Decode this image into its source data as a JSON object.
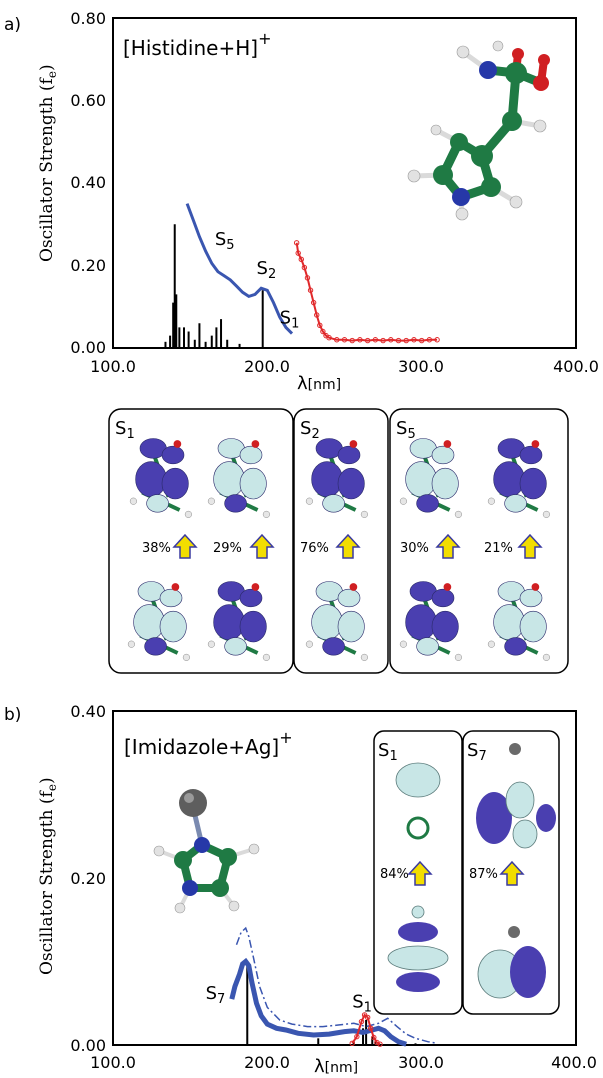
{
  "chart_data": [
    {
      "panel": "a)",
      "type": "line",
      "title": "[Histidine+H]",
      "title_superscript": "+",
      "ylabel": "Oscillator Strength",
      "ylabel_sub": "(f",
      "ylabel_sub_e": "e",
      "ylabel_close": ")",
      "xlabel_main": "λ",
      "xlabel_unit": "[nm]",
      "xlim": [
        100,
        400
      ],
      "ylim": [
        0,
        0.8
      ],
      "x_ticks": [
        "100.0",
        "200.0",
        "300.0",
        "400.0"
      ],
      "y_ticks": [
        "0.00",
        "0.20",
        "0.40",
        "0.60",
        "0.80"
      ],
      "sticks_x": [
        134,
        137,
        139,
        140,
        141,
        143,
        146,
        149,
        153,
        156,
        160,
        164,
        167,
        170,
        174,
        182,
        197
      ],
      "sticks_y": [
        0.015,
        0.03,
        0.11,
        0.3,
        0.13,
        0.05,
        0.05,
        0.04,
        0.02,
        0.06,
        0.015,
        0.03,
        0.05,
        0.07,
        0.02,
        0.01,
        0.14
      ],
      "blue_curve_x": [
        148,
        152,
        156,
        160,
        164,
        168,
        172,
        176,
        180,
        184,
        188,
        192,
        196,
        200,
        204,
        208,
        212,
        216
      ],
      "blue_curve_y": [
        0.35,
        0.31,
        0.27,
        0.235,
        0.205,
        0.185,
        0.175,
        0.165,
        0.15,
        0.135,
        0.125,
        0.13,
        0.145,
        0.14,
        0.11,
        0.075,
        0.05,
        0.035
      ],
      "red_exp_x": [
        219,
        220,
        222,
        224,
        226,
        228,
        230,
        232,
        234,
        236,
        238,
        240,
        245,
        250,
        255,
        260,
        265,
        270,
        275,
        280,
        285,
        290,
        295,
        300,
        305,
        310
      ],
      "red_exp_y": [
        0.255,
        0.23,
        0.215,
        0.195,
        0.17,
        0.14,
        0.11,
        0.08,
        0.055,
        0.04,
        0.03,
        0.025,
        0.02,
        0.02,
        0.018,
        0.02,
        0.018,
        0.02,
        0.018,
        0.02,
        0.018,
        0.018,
        0.02,
        0.018,
        0.02,
        0.02
      ],
      "state_labels": [
        {
          "text": "S",
          "sub": "5",
          "x": 166,
          "y": 0.25
        },
        {
          "text": "S",
          "sub": "2",
          "x": 193,
          "y": 0.18
        },
        {
          "text": "S",
          "sub": "1",
          "x": 208,
          "y": 0.06
        }
      ],
      "colors": {
        "sticks": "#000000",
        "theory": "#3a56b0",
        "experiment": "#e0282a"
      }
    },
    {
      "panel": "b)",
      "type": "line",
      "title": "[Imidazole+Ag]",
      "title_superscript": "+",
      "ylabel": "Oscillator Strength",
      "ylabel_sub": "(f",
      "ylabel_sub_e": "e",
      "ylabel_close": ")",
      "xlabel_main": "λ",
      "xlabel_unit": "[nm]",
      "xlim": [
        100,
        400
      ],
      "ylim": [
        0,
        0.4
      ],
      "x_ticks": [
        "100.0",
        "200.0",
        "300.0",
        "400.0"
      ],
      "y_ticks": [
        "0.00",
        "0.20",
        "0.40"
      ],
      "sticks_x": [
        187,
        233,
        256,
        262,
        264,
        268,
        270,
        296
      ],
      "sticks_y": [
        0.1,
        0.008,
        0.004,
        0.02,
        0.03,
        0.01,
        0.004,
        0.002
      ],
      "blue_solid_x": [
        177,
        179,
        182,
        184,
        186,
        188,
        190,
        193,
        196,
        200,
        206,
        212,
        220,
        230,
        240,
        250,
        256,
        262,
        268,
        272,
        276,
        280,
        285,
        290
      ],
      "blue_solid_y": [
        0.055,
        0.07,
        0.085,
        0.097,
        0.1,
        0.095,
        0.075,
        0.05,
        0.035,
        0.025,
        0.02,
        0.018,
        0.014,
        0.012,
        0.013,
        0.016,
        0.017,
        0.015,
        0.018,
        0.02,
        0.017,
        0.01,
        0.004,
        0.001
      ],
      "blue_dash_x": [
        180,
        183,
        186,
        188,
        191,
        195,
        200,
        208,
        216,
        226,
        236,
        246,
        256,
        264,
        272,
        278,
        284,
        290,
        296,
        304,
        310
      ],
      "blue_dash_y": [
        0.12,
        0.135,
        0.14,
        0.13,
        0.105,
        0.07,
        0.045,
        0.03,
        0.025,
        0.022,
        0.022,
        0.024,
        0.026,
        0.022,
        0.026,
        0.032,
        0.022,
        0.013,
        0.008,
        0.004,
        0.002
      ],
      "red_exp_x": [
        255,
        258,
        261,
        263,
        265,
        267,
        269,
        271,
        273
      ],
      "red_exp_y": [
        0.002,
        0.01,
        0.028,
        0.036,
        0.033,
        0.02,
        0.009,
        0.003,
        0.001
      ],
      "state_labels": [
        {
          "text": "S",
          "sub": "7",
          "x": 160,
          "y": 0.055
        },
        {
          "text": "S",
          "sub": "1",
          "x": 255,
          "y": 0.045
        }
      ],
      "colors": {
        "sticks": "#000000",
        "theory": "#3a56b0",
        "experiment": "#e0282a"
      }
    }
  ],
  "orbital_panels_a": [
    {
      "state": "S",
      "sub": "1",
      "pcts": [
        "38%",
        "29%"
      ]
    },
    {
      "state": "S",
      "sub": "2",
      "pcts": [
        "76%"
      ]
    },
    {
      "state": "S",
      "sub": "5",
      "pcts": [
        "30%",
        "21%"
      ]
    }
  ],
  "orbital_panels_b": [
    {
      "state": "S",
      "sub": "1",
      "pcts": [
        "84%"
      ]
    },
    {
      "state": "S",
      "sub": "7",
      "pcts": [
        "87%"
      ]
    }
  ],
  "colors": {
    "lobe_purple": "#4a3fb0",
    "lobe_cyan": "#c8e6e6",
    "carbon": "#1f7a44",
    "nitrogen": "#2638a8",
    "oxygen": "#d01f22",
    "hydrogen": "#e6e6e6",
    "silver": "#6a6a6a",
    "arrow_fill": "#f2dd00",
    "arrow_stroke": "#3a3aa0"
  }
}
